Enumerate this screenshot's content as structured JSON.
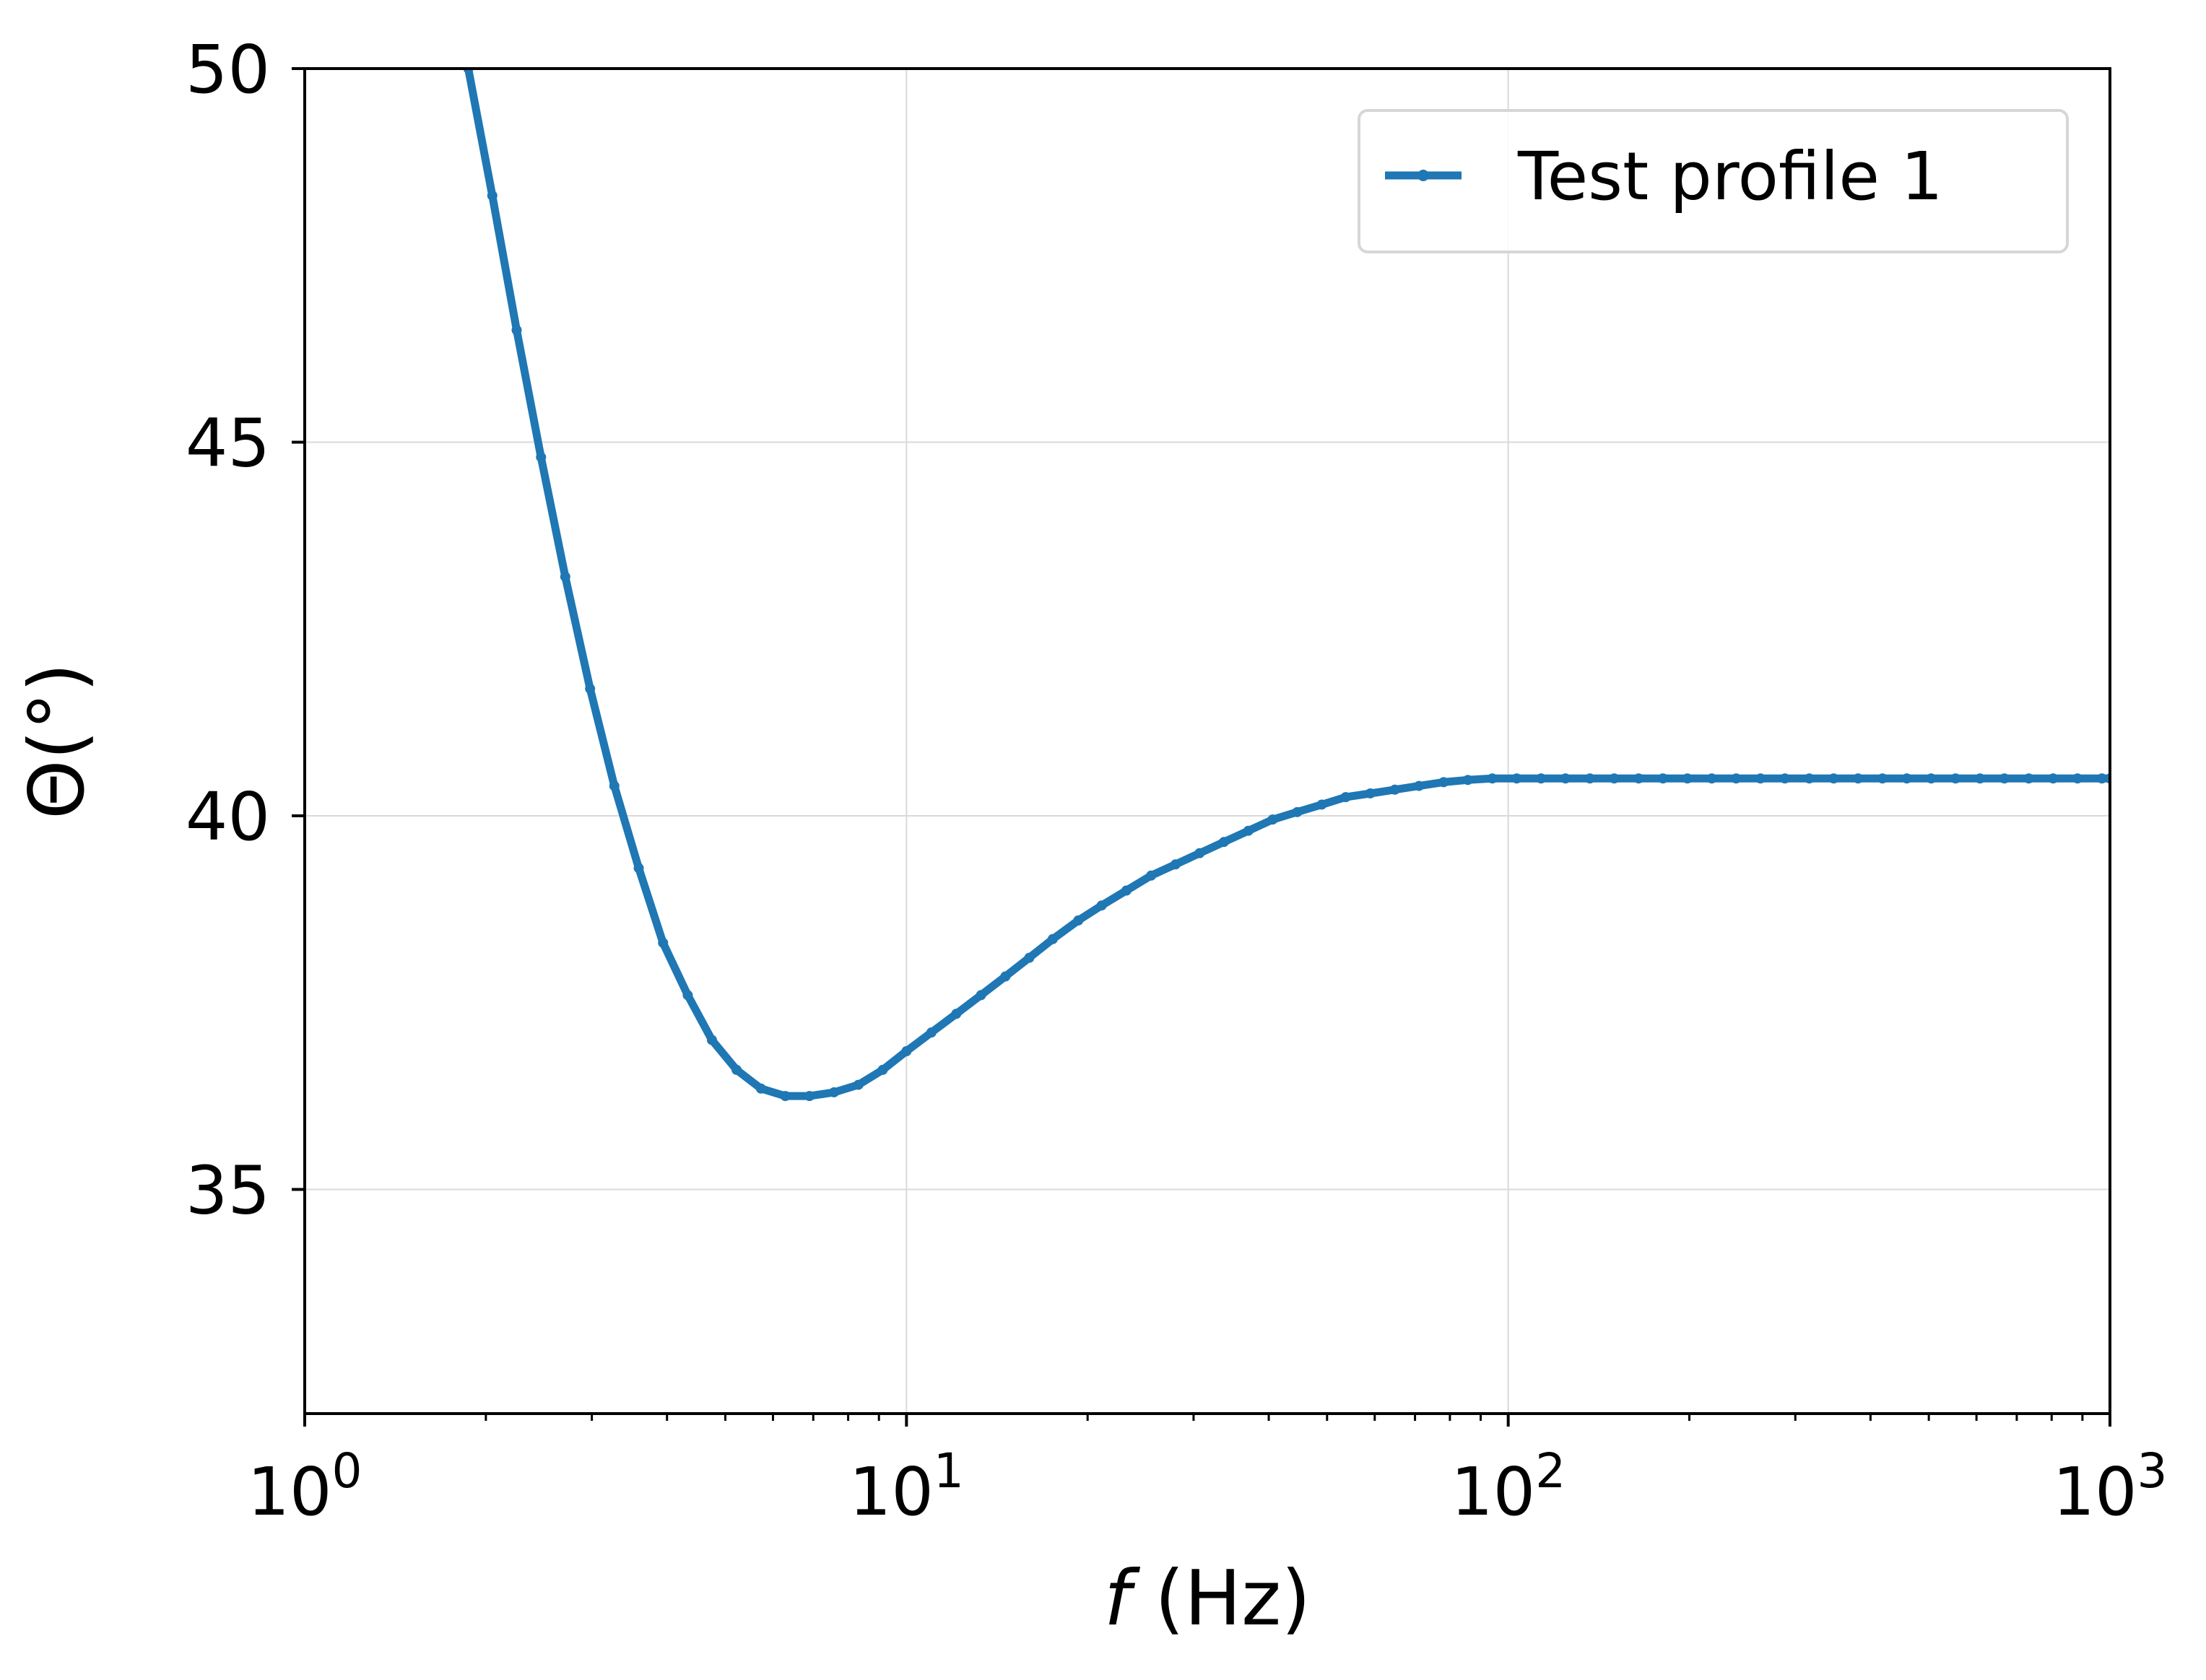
{
  "chart_data": {
    "type": "line",
    "xscale": "log",
    "xlim": [
      1,
      1000
    ],
    "ylim": [
      32,
      50
    ],
    "grid": true,
    "legend_position": "top-right",
    "xlabel": {
      "var": "f",
      "unit": " (Hz)"
    },
    "ylabel": "Θ(°)",
    "x_ticks": [
      {
        "value": 1,
        "base": "10",
        "exp": "0"
      },
      {
        "value": 10,
        "base": "10",
        "exp": "1"
      },
      {
        "value": 100,
        "base": "10",
        "exp": "2"
      },
      {
        "value": 1000,
        "base": "10",
        "exp": "3"
      }
    ],
    "y_ticks": [
      {
        "value": 35,
        "label": "35"
      },
      {
        "value": 40,
        "label": "40"
      },
      {
        "value": 45,
        "label": "45"
      },
      {
        "value": 50,
        "label": "50"
      }
    ],
    "colors": {
      "series": "#1f77b4",
      "grid": "#d9d9d9",
      "axis": "#000000",
      "legend_border": "#d6d6d6"
    },
    "series": [
      {
        "name": "Test profile 1",
        "x": [
          1.87,
          2.05,
          2.25,
          2.47,
          2.71,
          2.98,
          3.27,
          3.59,
          3.94,
          4.33,
          4.75,
          5.22,
          5.73,
          6.29,
          6.9,
          7.58,
          8.32,
          9.13,
          10.0,
          11.0,
          12.1,
          13.3,
          14.6,
          16.0,
          17.5,
          19.3,
          21.1,
          23.2,
          25.5,
          28.0,
          30.7,
          33.7,
          37.0,
          40.6,
          44.6,
          49.0,
          53.7,
          59.0,
          64.8,
          71.1,
          78.1,
          85.7,
          94.1,
          103.3,
          113.4,
          124.5,
          136.7,
          150.0,
          164.7,
          180.8,
          198.5,
          217.9,
          239.2,
          262.6,
          288.3,
          316.5,
          347.4,
          381.4,
          418.7,
          459.6,
          504.6,
          553.9,
          608.1,
          667.6,
          732.9,
          804.6,
          883.2,
          969.6,
          1000.0
        ],
        "y": [
          50.0,
          48.3,
          46.5,
          44.8,
          43.2,
          41.7,
          40.4,
          39.3,
          38.3,
          37.6,
          37.0,
          36.6,
          36.35,
          36.25,
          36.25,
          36.3,
          36.4,
          36.6,
          36.85,
          37.1,
          37.35,
          37.6,
          37.85,
          38.1,
          38.35,
          38.6,
          38.8,
          39.0,
          39.2,
          39.35,
          39.5,
          39.65,
          39.8,
          39.95,
          40.05,
          40.15,
          40.25,
          40.3,
          40.35,
          40.4,
          40.45,
          40.48,
          40.5,
          40.5,
          40.5,
          40.5,
          40.5,
          40.5,
          40.5,
          40.5,
          40.5,
          40.5,
          40.5,
          40.5,
          40.5,
          40.5,
          40.5,
          40.5,
          40.5,
          40.5,
          40.5,
          40.5,
          40.5,
          40.5,
          40.5,
          40.5,
          40.5,
          40.5,
          40.5
        ]
      }
    ]
  }
}
